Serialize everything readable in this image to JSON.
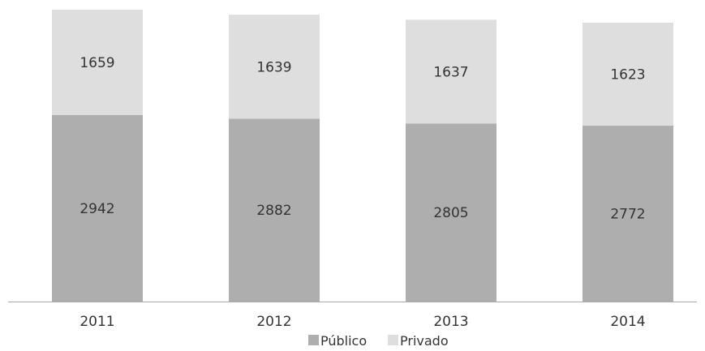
{
  "chart_data": {
    "type": "bar",
    "stacked": true,
    "title": "",
    "xlabel": "",
    "ylabel": "",
    "categories": [
      "2011",
      "2012",
      "2013",
      "2014"
    ],
    "series": [
      {
        "name": "Público",
        "color": "#aeaeae",
        "values": [
          2942,
          2882,
          2805,
          2772
        ]
      },
      {
        "name": "Privado",
        "color": "#dededf",
        "values": [
          1659,
          1639,
          1637,
          1623
        ]
      }
    ],
    "ylim": [
      0,
      4600
    ],
    "grid": false,
    "legend": "bottom-center",
    "axis_color": "#aaaaaa"
  }
}
